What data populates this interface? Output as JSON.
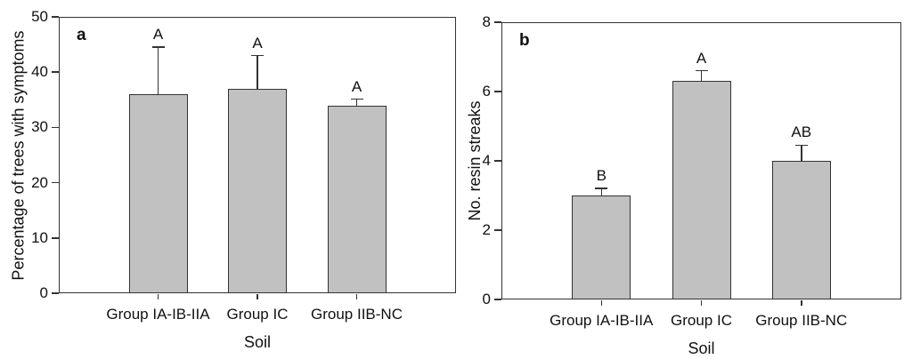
{
  "figure": {
    "colors": {
      "bar_fill": "#c1c1c1",
      "line": "#333333",
      "text": "#111111",
      "background": "#ffffff"
    }
  },
  "chart_data": [
    {
      "type": "bar",
      "panel_label": "a",
      "xlabel": "Soil",
      "ylabel": "Percentage of trees with symptoms",
      "categories": [
        "Group IA-IB-IIA",
        "Group IC",
        "Group IIB-NC"
      ],
      "values": [
        36,
        37,
        34
      ],
      "errors_upper": [
        8.5,
        6,
        1.1
      ],
      "sig_letters": [
        "A",
        "A",
        "A"
      ],
      "ylim": [
        0,
        50
      ],
      "yticks": [
        0,
        10,
        20,
        30,
        40,
        50
      ],
      "grid": false,
      "legend": "none"
    },
    {
      "type": "bar",
      "panel_label": "b",
      "xlabel": "Soil",
      "ylabel": "No. resin streaks",
      "categories": [
        "Group IA-IB-IIA",
        "Group IC",
        "Group IIB-NC"
      ],
      "values": [
        3,
        6.3,
        4
      ],
      "errors_upper": [
        0.2,
        0.3,
        0.45
      ],
      "sig_letters": [
        "B",
        "A",
        "AB"
      ],
      "ylim": [
        0,
        8
      ],
      "yticks": [
        0,
        2,
        4,
        6,
        8
      ],
      "grid": false,
      "legend": "none"
    }
  ]
}
